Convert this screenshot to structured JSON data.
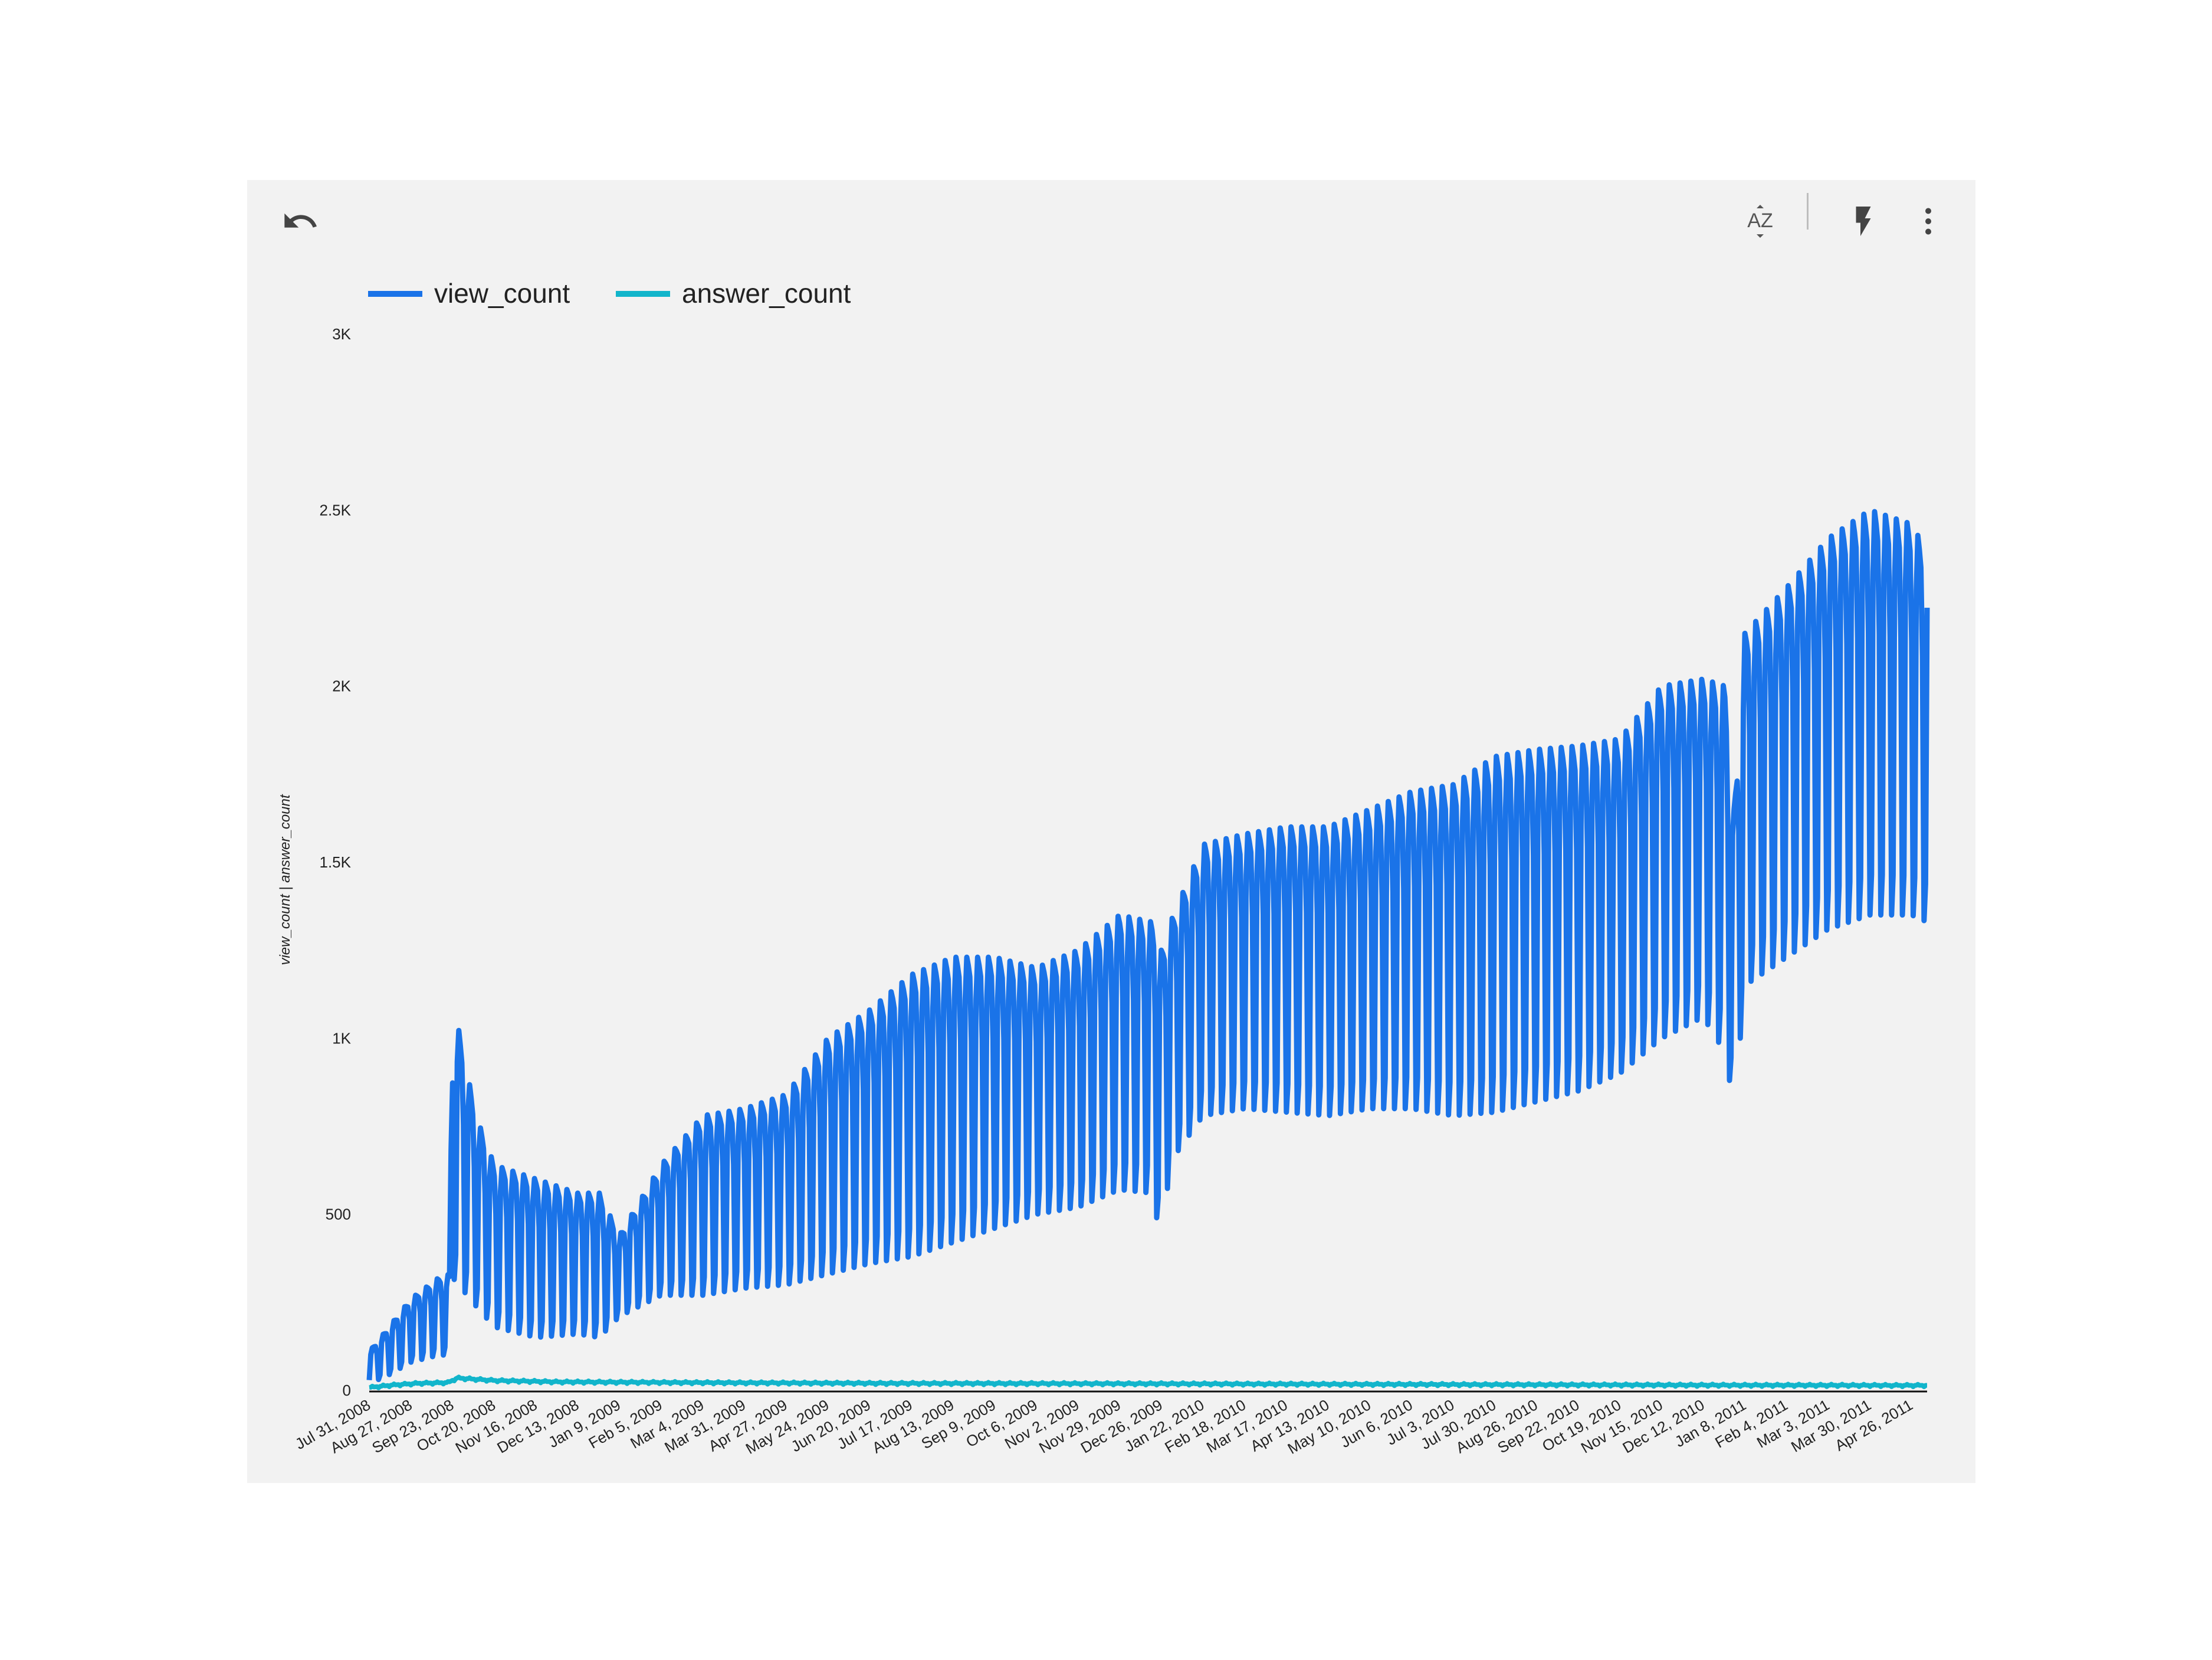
{
  "toolbar": {
    "undo_icon": "undo-icon",
    "sort_icon": "sort-az-icon",
    "sort_label": "AZ",
    "quick_icon": "lightning-bolt-icon",
    "more_icon": "more-vertical-icon"
  },
  "chart_data": {
    "type": "line",
    "title": "",
    "xlabel": "",
    "ylabel": "view_count | answer_count",
    "ylim": [
      0,
      3000
    ],
    "yticks": [
      0,
      500,
      1000,
      1500,
      2000,
      2500,
      3000
    ],
    "ytick_labels": [
      "0",
      "500",
      "1K",
      "1.5K",
      "2K",
      "2.5K",
      "3K"
    ],
    "x_range": [
      "2008-07-31",
      "2011-05-06"
    ],
    "x_tick_dates": [
      "2008-07-31",
      "2008-08-27",
      "2008-09-23",
      "2008-10-20",
      "2008-11-16",
      "2008-12-13",
      "2009-01-09",
      "2009-02-05",
      "2009-03-04",
      "2009-03-31",
      "2009-04-27",
      "2009-05-24",
      "2009-06-20",
      "2009-07-17",
      "2009-08-13",
      "2009-09-09",
      "2009-10-06",
      "2009-11-02",
      "2009-11-29",
      "2009-12-26",
      "2010-01-22",
      "2010-02-18",
      "2010-03-17",
      "2010-04-13",
      "2010-05-10",
      "2010-06-06",
      "2010-07-03",
      "2010-07-30",
      "2010-08-26",
      "2010-09-22",
      "2010-10-19",
      "2010-11-15",
      "2010-12-12",
      "2011-01-08",
      "2011-02-04",
      "2011-03-03",
      "2011-03-30",
      "2011-04-26"
    ],
    "x_tick_labels": [
      "Jul 31, 2008",
      "Aug 27, 2008",
      "Sep 23, 2008",
      "Oct 20, 2008",
      "Nov 16, 2008",
      "Dec 13, 2008",
      "Jan 9, 2009",
      "Feb 5, 2009",
      "Mar 4, 2009",
      "Mar 31, 2009",
      "Apr 27, 2009",
      "May 24, 2009",
      "Jun 20, 2009",
      "Jul 17, 2009",
      "Aug 13, 2009",
      "Sep 9, 2009",
      "Oct 6, 2009",
      "Nov 2, 2009",
      "Nov 29, 2009",
      "Dec 26, 2009",
      "Jan 22, 2010",
      "Feb 18, 2010",
      "Mar 17, 2010",
      "Apr 13, 2010",
      "May 10, 2010",
      "Jun 6, 2010",
      "Jul 3, 2010",
      "Jul 30, 2010",
      "Aug 26, 2010",
      "Sep 22, 2010",
      "Oct 19, 2010",
      "Nov 15, 2010",
      "Dec 12, 2010",
      "Jan 8, 2011",
      "Feb 4, 2011",
      "Mar 3, 2011",
      "Mar 30, 2011",
      "Apr 26, 2011"
    ],
    "legend_position": "top-left",
    "grid": false,
    "series": [
      {
        "name": "view_count",
        "color": "#1a73e8",
        "x": [
          "2008-07-31",
          "2008-08-11",
          "2008-08-27",
          "2008-09-14",
          "2008-09-21",
          "2008-09-23",
          "2008-10-08",
          "2008-10-20",
          "2008-11-16",
          "2008-12-13",
          "2008-12-27",
          "2009-01-09",
          "2009-02-05",
          "2009-03-04",
          "2009-03-31",
          "2009-04-27",
          "2009-05-24",
          "2009-06-20",
          "2009-07-17",
          "2009-08-13",
          "2009-09-09",
          "2009-10-06",
          "2009-11-02",
          "2009-11-29",
          "2009-12-20",
          "2009-12-26",
          "2010-01-01",
          "2010-01-22",
          "2010-02-18",
          "2010-03-17",
          "2010-04-13",
          "2010-05-10",
          "2010-06-06",
          "2010-07-03",
          "2010-07-30",
          "2010-08-26",
          "2010-09-22",
          "2010-10-19",
          "2010-11-15",
          "2010-12-12",
          "2010-12-26",
          "2011-01-01",
          "2011-01-08",
          "2011-02-04",
          "2011-03-03",
          "2011-03-30",
          "2011-04-26",
          "2011-05-06"
        ],
        "high": [
          110,
          170,
          260,
          320,
          330,
          1110,
          780,
          640,
          600,
          560,
          560,
          440,
          640,
          780,
          800,
          840,
          1000,
          1080,
          1180,
          1230,
          1230,
          1200,
          1250,
          1350,
          1330,
          1250,
          1330,
          1550,
          1580,
          1600,
          1600,
          1650,
          1700,
          1720,
          1800,
          1820,
          1830,
          1850,
          2000,
          2020,
          2000,
          1650,
          2150,
          2280,
          2420,
          2500,
          2460,
          2380
        ],
        "low": [
          20,
          40,
          80,
          100,
          100,
          320,
          240,
          180,
          150,
          160,
          150,
          210,
          270,
          270,
          290,
          300,
          330,
          360,
          380,
          420,
          460,
          500,
          520,
          570,
          560,
          420,
          650,
          780,
          800,
          790,
          780,
          800,
          800,
          780,
          790,
          820,
          850,
          900,
          1000,
          1060,
          960,
          800,
          1150,
          1230,
          1310,
          1350,
          1350,
          1330
        ]
      },
      {
        "name": "answer_count",
        "color": "#12b5cb",
        "x": [
          "2008-07-31",
          "2008-08-15",
          "2008-09-01",
          "2008-09-20",
          "2008-09-26",
          "2008-10-20",
          "2008-12-01",
          "2009-03-01",
          "2009-07-01",
          "2009-12-01",
          "2010-06-01",
          "2010-12-01",
          "2011-05-06"
        ],
        "values": [
          8,
          15,
          20,
          22,
          35,
          28,
          24,
          22,
          20,
          19,
          17,
          15,
          14
        ]
      }
    ]
  }
}
